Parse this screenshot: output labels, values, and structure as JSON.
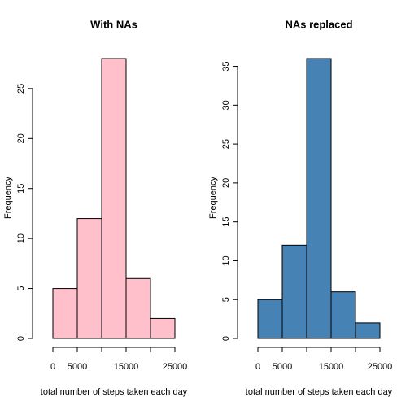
{
  "chart_data": [
    {
      "type": "histogram",
      "title": "With NAs",
      "xlabel": "total number of steps taken each day",
      "ylabel": "Frequency",
      "bins": [
        0,
        5000,
        10000,
        15000,
        20000,
        25000
      ],
      "values": [
        5,
        12,
        28,
        6,
        2
      ],
      "color": "#ffc0cb",
      "xlim": [
        0,
        25000
      ],
      "ylim": [
        0,
        28
      ],
      "xticks": [
        0,
        5000,
        {
          "value": 10000,
          "label": null
        },
        15000,
        {
          "value": 20000,
          "label": null
        },
        25000
      ],
      "yticks": [
        0,
        5,
        10,
        15,
        20,
        25
      ]
    },
    {
      "type": "histogram",
      "title": "NAs replaced",
      "xlabel": "total number of steps taken each day",
      "ylabel": "Frequency",
      "bins": [
        0,
        5000,
        10000,
        15000,
        20000,
        25000
      ],
      "values": [
        5,
        12,
        36,
        6,
        2
      ],
      "color": "#4682b4",
      "xlim": [
        0,
        25000
      ],
      "ylim": [
        0,
        36
      ],
      "xticks": [
        0,
        5000,
        {
          "value": 10000,
          "label": null
        },
        15000,
        {
          "value": 20000,
          "label": null
        },
        25000
      ],
      "yticks": [
        0,
        5,
        10,
        15,
        20,
        25,
        30,
        35
      ]
    }
  ]
}
